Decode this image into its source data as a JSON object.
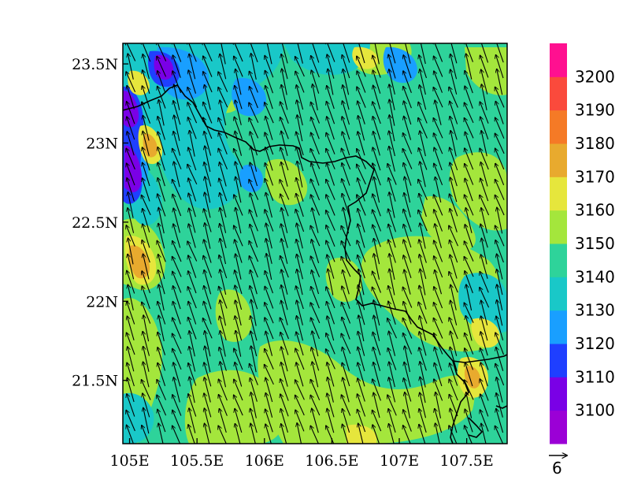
{
  "map": {
    "projection": "lat-lon",
    "extent": {
      "lon_min": 104.95,
      "lon_max": 107.8,
      "lat_min": 21.1,
      "lat_max": 23.63
    },
    "x_ticks": [
      {
        "value": 105.0,
        "label": "105E"
      },
      {
        "value": 105.5,
        "label": "105.5E"
      },
      {
        "value": 106.0,
        "label": "106E"
      },
      {
        "value": 106.5,
        "label": "106.5E"
      },
      {
        "value": 107.0,
        "label": "107E"
      },
      {
        "value": 107.5,
        "label": "107.5E"
      }
    ],
    "y_ticks": [
      {
        "value": 23.5,
        "label": "23.5N"
      },
      {
        "value": 23.0,
        "label": "23N"
      },
      {
        "value": 22.5,
        "label": "22.5N"
      },
      {
        "value": 22.0,
        "label": "22N"
      },
      {
        "value": 21.5,
        "label": "21.5N"
      }
    ],
    "background_color": "#2ed39a",
    "wind_vector_color": "#000000",
    "wind_direction": "southeasterly (pointing north-northwest)",
    "border_color": "#000000"
  },
  "colorbar": {
    "levels": [
      {
        "color": "#9b00d6",
        "label": "3100"
      },
      {
        "color": "#7a00e6",
        "label": "3110"
      },
      {
        "color": "#1f3fff",
        "label": "3120"
      },
      {
        "color": "#199fff",
        "label": "3130"
      },
      {
        "color": "#19c8c8",
        "label": "3140"
      },
      {
        "color": "#2ed39a",
        "label": "3150"
      },
      {
        "color": "#a4e63c",
        "label": "3160"
      },
      {
        "color": "#e6e63c",
        "label": "3170"
      },
      {
        "color": "#e8aa2e",
        "label": "3180"
      },
      {
        "color": "#f57a26",
        "label": "3190"
      },
      {
        "color": "#fa4a3c",
        "label": "3200"
      },
      {
        "color": "#ff1090",
        "label": ""
      }
    ]
  },
  "reference_vector": {
    "label": "6"
  }
}
